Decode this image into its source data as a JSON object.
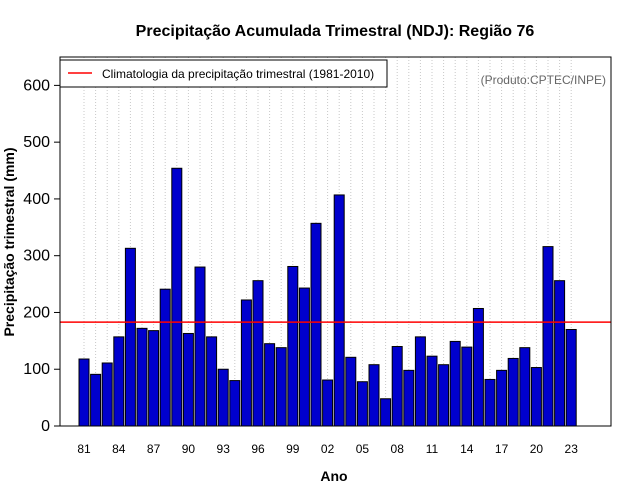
{
  "chart_data": {
    "type": "bar",
    "title": "Precipitação Acumulada Trimestral (NDJ): Região 76",
    "xlabel": "Ano",
    "ylabel": "Precipitação trimestral (mm)",
    "ylim": [
      0,
      650
    ],
    "yticks": [
      0,
      100,
      200,
      300,
      400,
      500,
      600
    ],
    "categories": [
      "81",
      "82",
      "83",
      "84",
      "85",
      "86",
      "87",
      "88",
      "89",
      "90",
      "91",
      "92",
      "93",
      "94",
      "95",
      "96",
      "97",
      "98",
      "99",
      "00",
      "01",
      "02",
      "03",
      "04",
      "05",
      "06",
      "07",
      "08",
      "09",
      "10",
      "11",
      "12",
      "13",
      "14",
      "15",
      "16",
      "17",
      "18",
      "19",
      "20",
      "21",
      "22",
      "23"
    ],
    "tick_labels": [
      "81",
      "84",
      "87",
      "90",
      "93",
      "96",
      "99",
      "02",
      "05",
      "08",
      "11",
      "14",
      "17",
      "20",
      "23"
    ],
    "values": [
      118,
      91,
      111,
      157,
      313,
      172,
      168,
      241,
      454,
      163,
      280,
      157,
      100,
      80,
      222,
      256,
      145,
      138,
      281,
      243,
      357,
      81,
      407,
      121,
      78,
      108,
      48,
      140,
      98,
      157,
      123,
      108,
      149,
      139,
      207,
      82,
      98,
      119,
      138,
      103,
      316,
      256,
      170
    ],
    "bar_color": "#0000cd",
    "reference_line": {
      "value": 183,
      "color": "#ff0000",
      "label": "Climatologia da precipitação trimestral (1981-2010)"
    },
    "legend_position": "top-left",
    "grid": "vertical dotted"
  },
  "credit": "(Produto:CPTEC/INPE)"
}
